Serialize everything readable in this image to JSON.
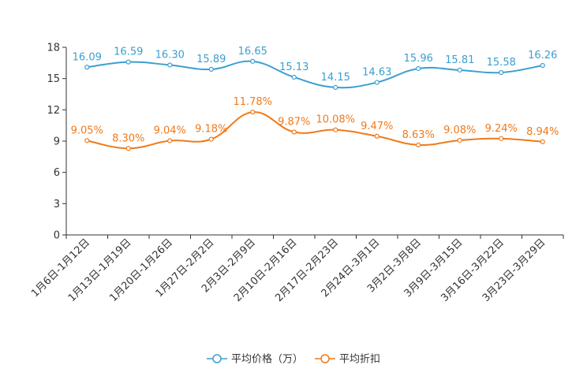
{
  "chart_data": {
    "type": "line",
    "title": "",
    "xlabel": "",
    "ylabel": "",
    "ylim": [
      0,
      18
    ],
    "yticks": [
      0,
      3,
      6,
      9,
      12,
      15,
      18
    ],
    "categories": [
      "1月6日-1月12日",
      "1月13日-1月19日",
      "1月20日-1月26日",
      "1月27日-2月2日",
      "2月3日-2月9日",
      "2月10日-2月16日",
      "2月17日-2月23日",
      "2月24日-3月1日",
      "3月2日-3月8日",
      "3月9日-3月15日",
      "3月16日-3月22日",
      "3月23日-3月29日"
    ],
    "series": [
      {
        "name": "平均价格（万）",
        "color": "#3b9fd1",
        "values": [
          16.09,
          16.59,
          16.3,
          15.89,
          16.65,
          15.13,
          14.15,
          14.63,
          15.96,
          15.81,
          15.58,
          16.26
        ],
        "labels": [
          "16.09",
          "16.59",
          "16.30",
          "15.89",
          "16.65",
          "15.13",
          "14.15",
          "14.63",
          "15.96",
          "15.81",
          "15.58",
          "16.26"
        ]
      },
      {
        "name": "平均折扣",
        "color": "#f07a1a",
        "values": [
          9.05,
          8.3,
          9.04,
          9.18,
          11.78,
          9.87,
          10.08,
          9.47,
          8.63,
          9.08,
          9.24,
          8.94
        ],
        "labels": [
          "9.05%",
          "8.30%",
          "9.04%",
          "9.18%",
          "11.78%",
          "9.87%",
          "10.08%",
          "9.47%",
          "8.63%",
          "9.08%",
          "9.24%",
          "8.94%"
        ]
      }
    ],
    "legend": "bottom-center",
    "grid": false
  }
}
